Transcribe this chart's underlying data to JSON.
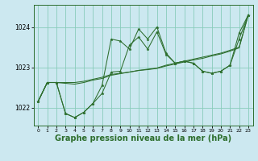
{
  "background_color": "#cce8f0",
  "grid_color": "#88ccbb",
  "line_color": "#2d6e2d",
  "marker_color": "#2d6e2d",
  "xlabel": "Graphe pression niveau de la mer (hPa)",
  "xlabel_fontsize": 7,
  "yticks": [
    1022,
    1023,
    1024
  ],
  "xticks": [
    0,
    1,
    2,
    3,
    4,
    5,
    6,
    7,
    8,
    9,
    10,
    11,
    12,
    13,
    14,
    15,
    16,
    17,
    18,
    19,
    20,
    21,
    22,
    23
  ],
  "xlim": [
    -0.5,
    23.5
  ],
  "ylim": [
    1021.55,
    1024.55
  ],
  "series_volatile": [
    1022.15,
    1022.62,
    1022.62,
    1021.85,
    1021.75,
    1021.88,
    1022.1,
    1022.55,
    1023.7,
    1023.65,
    1023.45,
    1023.95,
    1023.7,
    1024.0,
    1023.35,
    1023.1,
    1023.15,
    1023.1,
    1022.9,
    1022.85,
    1022.9,
    1023.05,
    1023.85,
    1024.3
  ],
  "series_diagonal": [
    1022.15,
    1022.62,
    1022.62,
    1022.62,
    1022.62,
    1022.65,
    1022.7,
    1022.75,
    1022.82,
    1022.85,
    1022.88,
    1022.92,
    1022.95,
    1022.98,
    1023.05,
    1023.1,
    1023.15,
    1023.2,
    1023.25,
    1023.3,
    1023.35,
    1023.42,
    1023.5,
    1024.3
  ],
  "series_diagonal2": [
    1022.15,
    1022.62,
    1022.62,
    1022.6,
    1022.58,
    1022.62,
    1022.68,
    1022.72,
    1022.8,
    1022.84,
    1022.88,
    1022.92,
    1022.94,
    1022.97,
    1023.03,
    1023.08,
    1023.13,
    1023.18,
    1023.22,
    1023.28,
    1023.33,
    1023.4,
    1023.48,
    1024.3
  ],
  "series_main": [
    1022.15,
    1022.62,
    1022.62,
    1021.85,
    1021.75,
    1021.88,
    1022.1,
    1022.35,
    1022.88,
    1022.9,
    1023.55,
    1023.75,
    1023.45,
    1023.88,
    1023.32,
    1023.1,
    1023.15,
    1023.1,
    1022.9,
    1022.85,
    1022.9,
    1023.05,
    1023.7,
    1024.3
  ]
}
